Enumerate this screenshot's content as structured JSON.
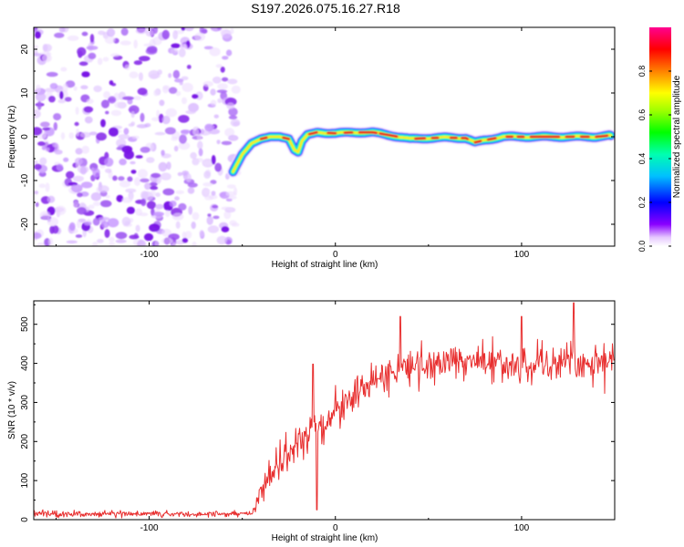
{
  "figure": {
    "title": "S197.2026.075.16.27.R18"
  },
  "chart_data": [
    {
      "type": "heatmap",
      "title": "S197.2026.075.16.27.R18",
      "xlabel": "Height of straight line (km)",
      "ylabel": "Frequency (Hz)",
      "xlim": [
        -162,
        150
      ],
      "ylim": [
        -25,
        25
      ],
      "xticks": [
        -100,
        0,
        100
      ],
      "yticks": [
        -20,
        -10,
        0,
        10,
        20
      ],
      "noise_region_x": [
        -162,
        -53
      ],
      "ridge": {
        "description": "narrow high-amplitude band tracing signal frequency",
        "x": [
          -55,
          -50,
          -45,
          -40,
          -35,
          -30,
          -25,
          -22,
          -20,
          -18,
          -15,
          -10,
          0,
          10,
          20,
          30,
          40,
          50,
          60,
          70,
          75,
          80,
          90,
          100,
          110,
          120,
          130,
          140,
          148
        ],
        "freq": [
          -8,
          -4,
          -1.5,
          -0.5,
          0,
          0,
          -0.5,
          -3,
          -3.5,
          -1,
          0.5,
          1,
          0.8,
          1,
          1,
          0.3,
          -0.5,
          -0.3,
          -0.2,
          -0.3,
          -1.3,
          -0.8,
          0,
          0,
          0,
          0,
          0,
          0,
          0.3
        ]
      },
      "colorbar": {
        "label": "Normalized spectral amplitude",
        "range": [
          0,
          1
        ],
        "ticks": [
          "0.0",
          "0.2",
          "0.4",
          "0.6",
          "0.8"
        ]
      }
    },
    {
      "type": "line",
      "title": "",
      "xlabel": "Height of straight line (km)",
      "ylabel": "SNR (10 * v/v)",
      "xlim": [
        -162,
        150
      ],
      "ylim": [
        0,
        560
      ],
      "xticks": [
        -100,
        0,
        100
      ],
      "yticks": [
        0,
        100,
        200,
        300,
        400,
        500
      ],
      "series": [
        {
          "name": "SNR",
          "color": "#e83030",
          "envelope_x": [
            -162,
            -45,
            -43,
            -40,
            -35,
            -30,
            -25,
            -20,
            -15,
            -10,
            -5,
            0,
            5,
            10,
            15,
            20,
            30,
            40,
            50,
            60,
            70,
            80,
            90,
            100,
            110,
            120,
            130,
            140,
            150
          ],
          "envelope_mean": [
            15,
            15,
            30,
            70,
            110,
            140,
            170,
            200,
            220,
            230,
            250,
            280,
            300,
            320,
            340,
            355,
            380,
            390,
            395,
            400,
            400,
            400,
            395,
            395,
            400,
            395,
            400,
            400,
            405
          ],
          "envelope_noise": [
            8,
            8,
            15,
            25,
            35,
            40,
            40,
            45,
            45,
            45,
            45,
            45,
            45,
            40,
            40,
            40,
            40,
            40,
            40,
            45,
            45,
            45,
            45,
            45,
            45,
            45,
            45,
            45,
            45
          ],
          "spikes": [
            {
              "x": -12,
              "y": 398
            },
            {
              "x": -10,
              "y": 25
            },
            {
              "x": 35,
              "y": 520
            },
            {
              "x": 128,
              "y": 555
            },
            {
              "x": 100,
              "y": 520
            }
          ]
        }
      ]
    }
  ]
}
